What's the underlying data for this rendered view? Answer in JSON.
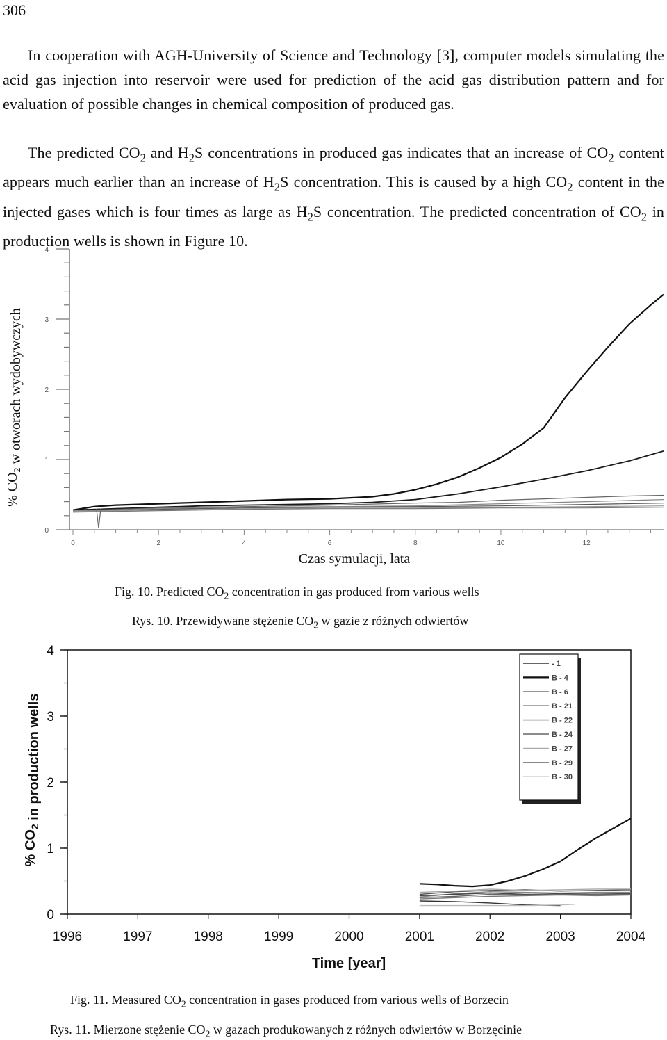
{
  "page_number": "306",
  "paragraphs": [
    "In cooperation with AGH-University of Science and Technology [3], computer models simulating the acid gas injection into reservoir were used for prediction of the acid gas distribution pattern and for evaluation of possible changes in chemical composition of produced gas.",
    "The predicted CO2 and H2S concentrations in produced gas indicates that an increase of CO2 content appears much earlier than an increase of H2S concentration. This is caused by a high CO2 content in the injected gases which is four times as large as H2S concentration. The predicted concentration of CO2 in production wells is shown in Figure 10."
  ],
  "figure10": {
    "caption_en": "Fig. 10. Predicted CO2 concentration in gas produced from various wells",
    "caption_pl": "Rys. 10. Przewidywane stężenie CO2 w gazie z różnych odwiertów"
  },
  "figure11": {
    "caption_en": "Fig. 11. Measured CO2 concentration in gases produced from various wells of Borzecin",
    "caption_pl": "Rys. 11. Mierzone stężenie CO2 w gazach produkowanych z różnych odwiertów w Borzęcinie"
  },
  "chart_data": [
    {
      "type": "line",
      "xlabel": "Czas symulacji, lata",
      "ylabel": "% CO2 w otworach wydobywczych",
      "xlim": [
        0,
        13.8
      ],
      "ylim": [
        0,
        4
      ],
      "x_ticks": [
        "0",
        "2",
        "4",
        "6",
        "8",
        "10",
        "12"
      ],
      "y_ticks": [
        "0",
        "1",
        "2",
        "3",
        "4"
      ],
      "series": [
        {
          "x": [
            0,
            0.5,
            1,
            2,
            3,
            4,
            5,
            6,
            7,
            7.5,
            8,
            8.5,
            9,
            9.5,
            10,
            10.5,
            11,
            11.5,
            12,
            12.5,
            13,
            13.5,
            13.8
          ],
          "values": [
            0.28,
            0.33,
            0.35,
            0.37,
            0.39,
            0.41,
            0.43,
            0.44,
            0.47,
            0.51,
            0.57,
            0.65,
            0.75,
            0.88,
            1.03,
            1.22,
            1.45,
            1.88,
            2.25,
            2.6,
            2.93,
            3.2,
            3.35
          ]
        },
        {
          "x": [
            0,
            1,
            2,
            3,
            4,
            5,
            6,
            7,
            8,
            9,
            10,
            11,
            12,
            13,
            13.8
          ],
          "values": [
            0.28,
            0.3,
            0.32,
            0.34,
            0.35,
            0.36,
            0.37,
            0.39,
            0.43,
            0.51,
            0.61,
            0.72,
            0.84,
            0.98,
            1.12
          ]
        },
        {
          "x": [
            0,
            1,
            2,
            4,
            6,
            8,
            9,
            10,
            11,
            12,
            13,
            13.8
          ],
          "values": [
            0.27,
            0.29,
            0.31,
            0.33,
            0.35,
            0.38,
            0.39,
            0.42,
            0.44,
            0.46,
            0.48,
            0.49
          ]
        },
        {
          "x": [
            0,
            1,
            2,
            4,
            6,
            8,
            10,
            12,
            13.8
          ],
          "values": [
            0.27,
            0.28,
            0.3,
            0.32,
            0.33,
            0.34,
            0.37,
            0.4,
            0.43
          ]
        },
        {
          "x": [
            0,
            1,
            2,
            4,
            6,
            8,
            10,
            12,
            13.8
          ],
          "values": [
            0.26,
            0.27,
            0.29,
            0.31,
            0.32,
            0.33,
            0.34,
            0.36,
            0.38
          ]
        },
        {
          "x": [
            0,
            1,
            2,
            4,
            6,
            8,
            10,
            12,
            13.8
          ],
          "values": [
            0.26,
            0.27,
            0.28,
            0.3,
            0.31,
            0.31,
            0.32,
            0.33,
            0.34
          ]
        },
        {
          "x": [
            0,
            1,
            2,
            4,
            6,
            8,
            10,
            12,
            13.8
          ],
          "values": [
            0.25,
            0.26,
            0.27,
            0.29,
            0.3,
            0.3,
            0.31,
            0.31,
            0.32
          ]
        }
      ]
    },
    {
      "type": "line",
      "xlabel": "Time [year]",
      "ylabel": "% CO2 in production wells",
      "xlim": [
        1996,
        2004
      ],
      "ylim": [
        0,
        4
      ],
      "x_ticks": [
        "1996",
        "1997",
        "1998",
        "1999",
        "2000",
        "2001",
        "2002",
        "2003",
        "2004"
      ],
      "y_ticks": [
        "0",
        "1",
        "2",
        "3",
        "4"
      ],
      "legend": {
        "position": "top-right",
        "entries": [
          "- 1",
          "B - 4",
          "B - 6",
          "B - 21",
          "B - 22",
          "B - 24",
          "B - 27",
          "B - 29",
          "B - 30"
        ]
      },
      "series": [
        {
          "name": "- 1",
          "x": [
            2001,
            2001.5,
            2002,
            2002.5,
            2003
          ],
          "values": [
            0.2,
            0.19,
            0.17,
            0.14,
            0.13
          ]
        },
        {
          "name": "B - 4",
          "x": [
            2001,
            2001.25,
            2001.5,
            2001.75,
            2002,
            2002.25,
            2002.5,
            2002.75,
            2003,
            2003.25,
            2003.5,
            2003.75,
            2004
          ],
          "values": [
            0.46,
            0.45,
            0.43,
            0.42,
            0.44,
            0.5,
            0.58,
            0.68,
            0.8,
            0.98,
            1.15,
            1.3,
            1.45
          ]
        },
        {
          "name": "B - 6",
          "x": [
            2001,
            2001.5,
            2002,
            2002.5,
            2003,
            2003.5,
            2004
          ],
          "values": [
            0.26,
            0.31,
            0.34,
            0.33,
            0.32,
            0.33,
            0.33
          ]
        },
        {
          "name": "B - 21",
          "x": [
            2001,
            2001.5,
            2002,
            2002.5,
            2003,
            2003.5,
            2004
          ],
          "values": [
            0.3,
            0.34,
            0.36,
            0.37,
            0.35,
            0.36,
            0.37
          ]
        },
        {
          "name": "B - 22",
          "x": [
            2001,
            2001.5,
            2002,
            2002.5,
            2003,
            2003.5,
            2004
          ],
          "values": [
            0.28,
            0.3,
            0.32,
            0.3,
            0.31,
            0.32,
            0.31
          ]
        },
        {
          "name": "B - 24",
          "x": [
            2001,
            2001.5,
            2002,
            2002.5,
            2003,
            2003.5,
            2004
          ],
          "values": [
            0.25,
            0.27,
            0.3,
            0.29,
            0.3,
            0.3,
            0.3
          ]
        },
        {
          "name": "B - 27",
          "x": [
            2001,
            2001.5,
            2002,
            2002.5,
            2003,
            2003.5,
            2004
          ],
          "values": [
            0.33,
            0.35,
            0.38,
            0.36,
            0.37,
            0.38,
            0.38
          ]
        },
        {
          "name": "B - 29",
          "x": [
            2001,
            2001.5,
            2002,
            2002.5,
            2003,
            2003.5,
            2004
          ],
          "values": [
            0.23,
            0.25,
            0.27,
            0.28,
            0.29,
            0.28,
            0.29
          ]
        },
        {
          "name": "B - 30",
          "x": [
            2001,
            2001.5,
            2002,
            2002.5,
            2003,
            2003.2
          ],
          "values": [
            0.13,
            0.13,
            0.13,
            0.13,
            0.14,
            0.15
          ]
        }
      ]
    }
  ]
}
